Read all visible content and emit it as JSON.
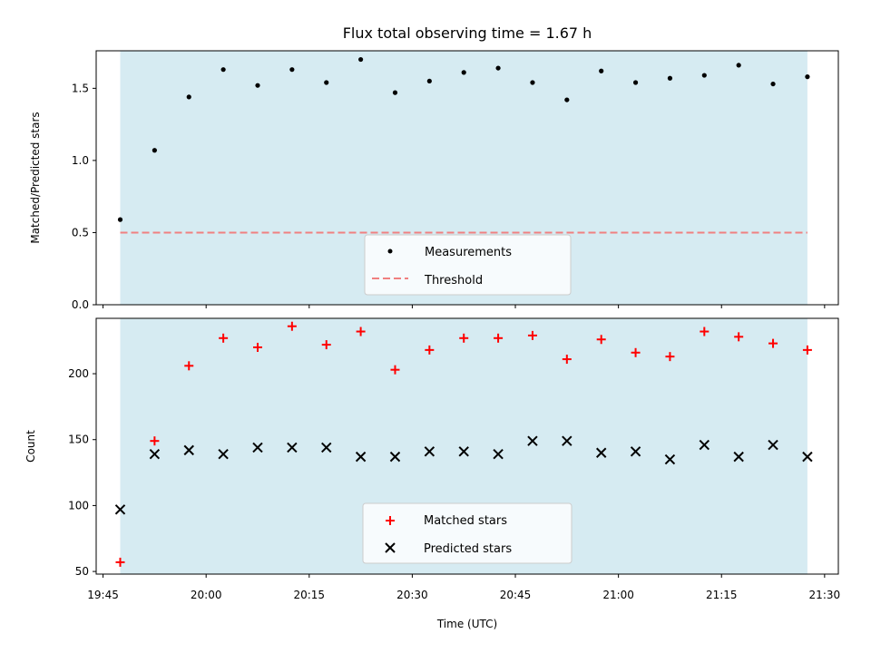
{
  "chart_data": [
    {
      "type": "scatter",
      "title": "Flux total observing time = 1.67 h",
      "xlabel": "",
      "ylabel": "Matched/Predicted stars",
      "ylim": [
        0.0,
        1.76
      ],
      "yticks": [
        "0.0",
        "0.5",
        "1.0",
        "1.5"
      ],
      "ytick_values": [
        0.0,
        0.5,
        1.0,
        1.5
      ],
      "shaded_region": {
        "from": "19:47:30",
        "to": "21:27:30",
        "color": "#add8e6"
      },
      "threshold": {
        "name": "Threshold",
        "value": 0.5,
        "from": "19:47:30",
        "to": "21:27:30",
        "color": "#f08080"
      },
      "legend": {
        "position": "lower center",
        "entries": [
          "Measurements",
          "Threshold"
        ]
      },
      "series": [
        {
          "name": "Measurements",
          "color": "#000000",
          "marker": "dot",
          "x": [
            "19:47:30",
            "19:52:30",
            "19:57:30",
            "20:02:30",
            "20:07:30",
            "20:12:30",
            "20:17:30",
            "20:22:30",
            "20:27:30",
            "20:32:30",
            "20:37:30",
            "20:42:30",
            "20:47:30",
            "20:52:30",
            "20:57:30",
            "21:02:30",
            "21:07:30",
            "21:12:30",
            "21:17:30",
            "21:22:30",
            "21:27:30"
          ],
          "values": [
            0.59,
            1.07,
            1.44,
            1.63,
            1.52,
            1.63,
            1.54,
            1.7,
            1.47,
            1.55,
            1.61,
            1.64,
            1.54,
            1.42,
            1.62,
            1.54,
            1.57,
            1.59,
            1.66,
            1.53,
            1.58
          ]
        }
      ]
    },
    {
      "type": "scatter",
      "title": "",
      "xlabel": "Time (UTC)",
      "ylabel": "Count",
      "ylim": [
        48,
        242
      ],
      "yticks": [
        "50",
        "100",
        "150",
        "200"
      ],
      "ytick_values": [
        50,
        100,
        150,
        200
      ],
      "xticks": [
        "19:45",
        "20:00",
        "20:15",
        "20:30",
        "20:45",
        "21:00",
        "21:15",
        "21:30"
      ],
      "xtick_values": [
        "19:45:00",
        "20:00:00",
        "20:15:00",
        "20:30:00",
        "20:45:00",
        "21:00:00",
        "21:15:00",
        "21:30:00"
      ],
      "xlim": [
        "19:44:00",
        "21:32:00"
      ],
      "shaded_region": {
        "from": "19:47:30",
        "to": "21:27:30",
        "color": "#add8e6"
      },
      "legend": {
        "position": "lower center",
        "entries": [
          "Matched stars",
          "Predicted stars"
        ]
      },
      "series": [
        {
          "name": "Matched stars",
          "color": "#ff0000",
          "marker": "plus",
          "x": [
            "19:47:30",
            "19:52:30",
            "19:57:30",
            "20:02:30",
            "20:07:30",
            "20:12:30",
            "20:17:30",
            "20:22:30",
            "20:27:30",
            "20:32:30",
            "20:37:30",
            "20:42:30",
            "20:47:30",
            "20:52:30",
            "20:57:30",
            "21:02:30",
            "21:07:30",
            "21:12:30",
            "21:17:30",
            "21:22:30",
            "21:27:30"
          ],
          "values": [
            57,
            149,
            206,
            227,
            220,
            236,
            222,
            232,
            203,
            218,
            227,
            227,
            229,
            211,
            226,
            216,
            213,
            232,
            228,
            223,
            218
          ]
        },
        {
          "name": "Predicted stars",
          "color": "#000000",
          "marker": "x",
          "x": [
            "19:47:30",
            "19:52:30",
            "19:57:30",
            "20:02:30",
            "20:07:30",
            "20:12:30",
            "20:17:30",
            "20:22:30",
            "20:27:30",
            "20:32:30",
            "20:37:30",
            "20:42:30",
            "20:47:30",
            "20:52:30",
            "20:57:30",
            "21:02:30",
            "21:07:30",
            "21:12:30",
            "21:17:30",
            "21:22:30",
            "21:27:30"
          ],
          "values": [
            97,
            139,
            142,
            139,
            144,
            144,
            144,
            137,
            137,
            141,
            141,
            139,
            149,
            149,
            140,
            141,
            135,
            146,
            137,
            146,
            137
          ]
        }
      ]
    }
  ]
}
